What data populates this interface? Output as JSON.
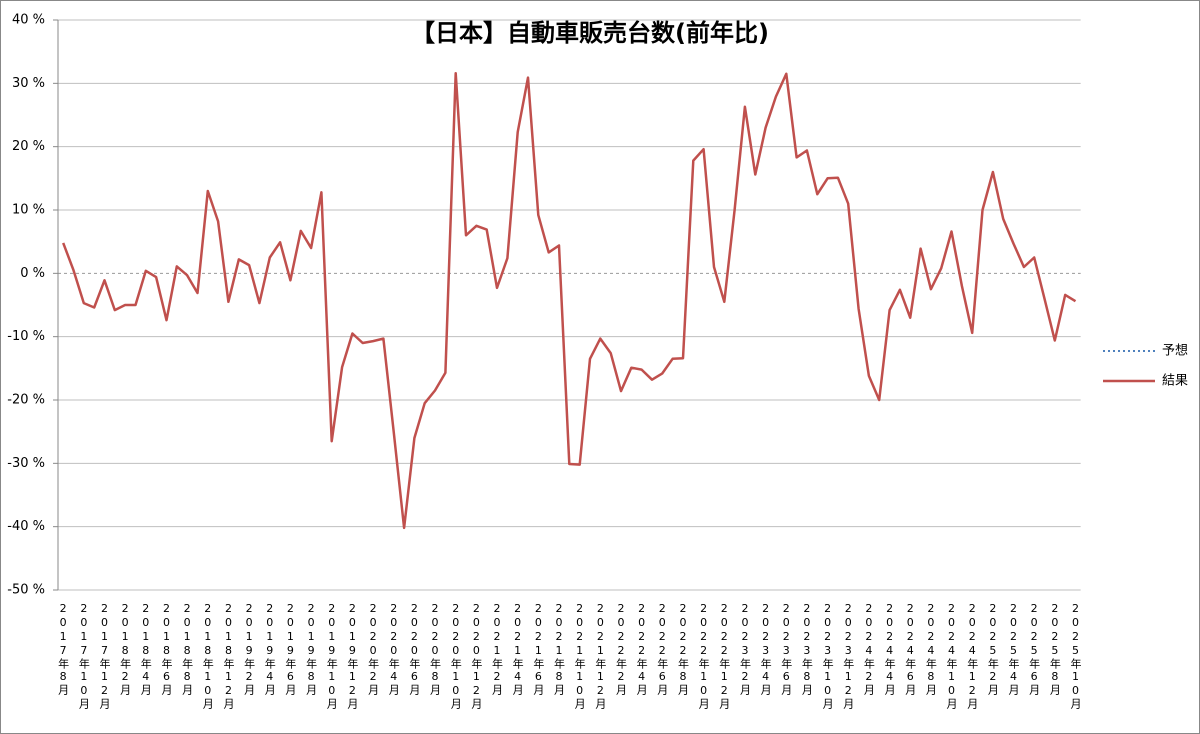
{
  "chart_data": {
    "type": "line",
    "title": "【日本】自動車販売台数(前年比)",
    "categories": [
      "2017年8月",
      null,
      "2017年10月",
      null,
      "2017年12月",
      null,
      "2018年2月",
      null,
      "2018年4月",
      null,
      "2018年6月",
      null,
      "2018年8月",
      null,
      "2018年10月",
      null,
      "2018年12月",
      null,
      "2019年2月",
      null,
      "2019年4月",
      null,
      "2019年6月",
      null,
      "2019年8月",
      null,
      "2019年10月",
      null,
      "2019年12月",
      null,
      "2020年2月",
      null,
      "2020年4月",
      null,
      "2020年6月",
      null,
      "2020年8月",
      null,
      "2020年10月",
      null,
      "2020年12月",
      null,
      "2021年2月",
      null,
      "2021年4月",
      null,
      "2021年6月",
      null,
      "2021年8月",
      null,
      "2021年10月",
      null,
      "2021年12月",
      null,
      "2022年2月",
      null,
      "2022年4月",
      null,
      "2022年6月",
      null,
      "2022年8月",
      null,
      "2022年10月",
      null,
      "2022年12月",
      null,
      "2023年2月",
      null,
      "2023年4月",
      null,
      "2023年6月",
      null,
      "2023年8月",
      null,
      "2023年10月",
      null,
      "2023年12月",
      null,
      "2024年2月",
      null,
      "2024年4月",
      null,
      "2024年6月",
      null,
      "2024年8月",
      null,
      "2024年10月",
      null,
      "2024年12月",
      null,
      "2025年2月",
      null,
      "2025年4月",
      null,
      "2025年6月",
      null,
      "2025年8月",
      null,
      "2025年10月"
    ],
    "series": [
      {
        "name": "予想",
        "color": "#4f81bd",
        "dash": "dotted",
        "values": [
          null,
          null,
          null,
          null,
          null,
          null,
          null,
          null,
          null,
          null,
          null,
          null,
          null,
          null,
          null,
          null,
          null,
          null,
          null,
          null,
          null,
          null,
          null,
          null,
          null,
          null,
          null,
          null,
          null,
          null,
          null,
          null,
          null,
          null,
          null,
          null,
          null,
          null,
          null,
          null,
          null,
          null,
          null,
          null,
          null,
          null,
          null,
          null,
          null,
          null,
          null,
          null,
          null,
          null,
          null,
          null,
          null,
          null,
          null,
          null,
          null,
          null,
          null,
          null,
          null,
          null,
          null,
          null,
          null,
          null,
          null,
          null,
          null,
          null,
          null,
          null,
          null,
          null,
          null,
          null,
          null,
          null,
          null,
          null,
          null,
          null,
          null,
          null,
          null,
          null,
          null,
          null,
          null,
          null,
          null,
          null,
          null,
          null,
          null
        ]
      },
      {
        "name": "結果",
        "color": "#c0504d",
        "dash": "solid",
        "values": [
          4.8,
          0.5,
          -4.7,
          -5.4,
          -1.1,
          -5.8,
          -5.0,
          -5.0,
          0.4,
          -0.6,
          -7.4,
          1.1,
          -0.3,
          -3.1,
          13.0,
          8.2,
          -4.5,
          2.2,
          1.3,
          -4.7,
          2.5,
          4.9,
          -1.1,
          6.7,
          4.0,
          12.8,
          -26.5,
          -14.8,
          -9.5,
          -11.0,
          -10.7,
          -10.3,
          -25.0,
          -40.2,
          -26.0,
          -20.5,
          -18.5,
          -15.7,
          31.6,
          6.0,
          7.5,
          6.9,
          -2.3,
          2.4,
          22.3,
          30.9,
          9.2,
          3.3,
          4.4,
          -30.1,
          -30.2,
          -13.5,
          -10.3,
          -12.6,
          -18.6,
          -14.9,
          -15.2,
          -16.8,
          -15.8,
          -13.5,
          -13.4,
          17.8,
          19.6,
          1.0,
          -4.5,
          10.0,
          26.3,
          15.6,
          23.0,
          27.9,
          31.5,
          18.3,
          19.4,
          12.5,
          15.0,
          15.1,
          11.0,
          -5.6,
          -16.2,
          -20.0,
          -5.8,
          -2.6,
          -7.0,
          3.9,
          -2.5,
          0.8,
          6.6,
          -2.0,
          -9.4,
          10.0,
          16.0,
          8.6,
          4.7,
          1.0,
          2.5,
          -4.0,
          -10.6,
          -3.4,
          -4.4
        ]
      }
    ],
    "ylim": [
      -50,
      40
    ],
    "yticks": [
      {
        "value": -50,
        "label": "-50 %"
      },
      {
        "value": -40,
        "label": "-40 %"
      },
      {
        "value": -30,
        "label": "-30 %"
      },
      {
        "value": -20,
        "label": "-20 %"
      },
      {
        "value": -10,
        "label": "-10 %"
      },
      {
        "value": 0,
        "label": "0 %"
      },
      {
        "value": 10,
        "label": "10 %"
      },
      {
        "value": 20,
        "label": "20 %"
      },
      {
        "value": 30,
        "label": "30 %"
      },
      {
        "value": 40,
        "label": "40 %"
      }
    ],
    "grid": true,
    "legend": "right"
  }
}
